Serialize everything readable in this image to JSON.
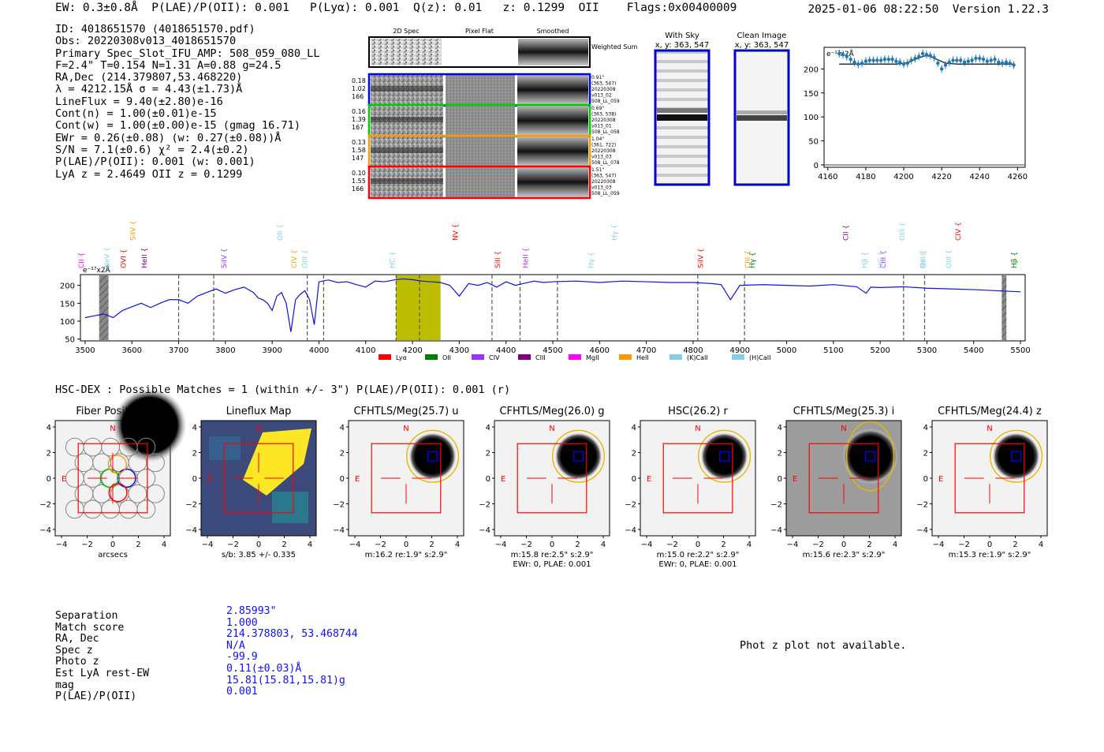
{
  "header": {
    "ew": "EW: 0.3±0.8Å",
    "plae": "P(LAE)/P(OII): 0.001",
    "plya": "P(Lyα): 0.001",
    "qz": "Q(z): 0.01",
    "z": "z: 0.1299",
    "z_line": "OII",
    "flags": "Flags:0x00400009",
    "timestamp": "2025-01-06 08:22:50",
    "version": "Version 1.22.3"
  },
  "info_lines": [
    "ID: 4018651570 (4018651570.pdf)",
    "Obs: 20220308v013_4018651570",
    "Primary Spec_Slot_IFU_AMP: 508_059_080_LL",
    "F=2.4\"  T=0.154  N=1.31  A=0.88  g=24.5",
    "RA,Dec (214.379807,53.468220)",
    "λ = 4212.15Å  σ = 4.43(±1.73)Å",
    "LineFlux = 9.40(±2.80)e-16",
    "Cont(n) = 1.00(±0.01)e-15",
    "Cont(w) = 1.00(±0.00)e-15 (gmag 16.71)",
    "EWr = 0.26(±0.08)  (w: 0.27(±0.08))Å",
    "S/N = 7.1(±0.6)  χ² = 2.4(±0.2)",
    "P(LAE)/P(OII): 0.001  (w: 0.001)",
    "LyA z = 2.4649   OII z = 0.1299"
  ],
  "cutouts": {
    "col_headers": [
      "2D Spec",
      "Pixel Flat",
      "Smoothed"
    ],
    "weighted_label": "Weighted Sum",
    "rows": [
      {
        "left": [
          "0.18",
          "1.02",
          "166"
        ],
        "right": [
          "0.91\"",
          "(363, 547)",
          "20220308",
          "v013_02",
          "508_LL_059"
        ],
        "color": "#0000ff"
      },
      {
        "left": [
          "0.16",
          "1.39",
          "167"
        ],
        "right": [
          "0.69\"",
          "(363, 538)",
          "20220308",
          "v013_01",
          "508_LL_058"
        ],
        "color": "#00cc00"
      },
      {
        "left": [
          "0.13",
          "1.58",
          "147"
        ],
        "right": [
          "1.04\"",
          "(361, 722)",
          "20220308",
          "v013_03",
          "508_LL_078"
        ],
        "color": "#ff9900"
      },
      {
        "left": [
          "0.10",
          "1.55",
          "166"
        ],
        "right": [
          "1.51\"",
          "(363, 547)",
          "20220308",
          "v013_03",
          "508_LL_059"
        ],
        "color": "#ff0000"
      }
    ]
  },
  "sky_panels": {
    "with_sky": {
      "title": "With Sky",
      "coords": "x, y: 363, 547"
    },
    "clean": {
      "title": "Clean Image",
      "coords": "x, y: 363, 547"
    }
  },
  "zoom_chart": {
    "unit_label": "e⁻¹⁷x2Å",
    "yticks": [
      0,
      50,
      100,
      150,
      200
    ],
    "xticks": [
      4160,
      4180,
      4200,
      4220,
      4240,
      4260
    ]
  },
  "chart_data": [
    {
      "type": "scatter",
      "title": "",
      "xlabel": "",
      "ylabel": "e⁻¹⁷x2Å",
      "xlim": [
        4158,
        4264
      ],
      "ylim": [
        -5,
        245
      ],
      "series": [
        {
          "values": [
            [
              4166,
              232
            ],
            [
              4168,
              230
            ],
            [
              4170,
              226
            ],
            [
              4172,
              220
            ],
            [
              4174,
              214
            ],
            [
              4176,
              210
            ],
            [
              4178,
              212
            ],
            [
              4180,
              216
            ],
            [
              4182,
              218
            ],
            [
              4184,
              218
            ],
            [
              4186,
              218
            ],
            [
              4188,
              218
            ],
            [
              4190,
              220
            ],
            [
              4192,
              220
            ],
            [
              4194,
              220
            ],
            [
              4196,
              216
            ],
            [
              4198,
              214
            ],
            [
              4200,
              210
            ],
            [
              4202,
              212
            ],
            [
              4204,
              218
            ],
            [
              4206,
              222
            ],
            [
              4208,
              226
            ],
            [
              4210,
              232
            ],
            [
              4212,
              230
            ],
            [
              4214,
              228
            ],
            [
              4216,
              224
            ],
            [
              4218,
              212
            ],
            [
              4220,
              200
            ],
            [
              4222,
              208
            ],
            [
              4224,
              214
            ],
            [
              4226,
              218
            ],
            [
              4228,
              218
            ],
            [
              4230,
              218
            ],
            [
              4232,
              214
            ],
            [
              4234,
              216
            ],
            [
              4236,
              218
            ],
            [
              4238,
              222
            ],
            [
              4240,
              222
            ],
            [
              4242,
              220
            ],
            [
              4244,
              216
            ],
            [
              4246,
              218
            ],
            [
              4248,
              220
            ],
            [
              4250,
              214
            ],
            [
              4252,
              212
            ],
            [
              4254,
              214
            ],
            [
              4256,
              212
            ],
            [
              4258,
              208
            ]
          ]
        },
        {
          "values": [
            [
              4166,
              210
            ],
            [
              4196,
              210
            ],
            [
              4202,
              213
            ],
            [
              4206,
              220
            ],
            [
              4210,
              226
            ],
            [
              4212,
              228
            ],
            [
              4214,
              226
            ],
            [
              4218,
              219
            ],
            [
              4222,
              212
            ],
            [
              4228,
              210
            ],
            [
              4258,
              210
            ]
          ]
        }
      ]
    },
    {
      "type": "line",
      "title": "",
      "xlabel": "",
      "ylabel": "e⁻¹⁷x2Å",
      "xlim": [
        3490,
        5510
      ],
      "ylim": [
        45,
        230
      ],
      "x": [
        3500,
        3520,
        3540,
        3560,
        3580,
        3600,
        3620,
        3640,
        3660,
        3680,
        3700,
        3720,
        3740,
        3760,
        3780,
        3800,
        3820,
        3840,
        3860,
        3870,
        3880,
        3890,
        3900,
        3910,
        3920,
        3930,
        3940,
        3950,
        3960,
        3970,
        3980,
        3990,
        4000,
        4020,
        4040,
        4060,
        4080,
        4100,
        4120,
        4140,
        4160,
        4180,
        4200,
        4220,
        4240,
        4260,
        4280,
        4300,
        4320,
        4340,
        4360,
        4380,
        4400,
        4420,
        4440,
        4460,
        4480,
        4500,
        4550,
        4600,
        4650,
        4700,
        4750,
        4800,
        4840,
        4860,
        4880,
        4900,
        4950,
        5000,
        5050,
        5100,
        5150,
        5170,
        5180,
        5200,
        5250,
        5300,
        5350,
        5400,
        5450,
        5500
      ],
      "series": [
        {
          "name": "spectrum",
          "values": [
            110,
            115,
            120,
            110,
            130,
            140,
            150,
            138,
            150,
            160,
            160,
            150,
            170,
            180,
            190,
            178,
            188,
            195,
            180,
            165,
            160,
            150,
            130,
            170,
            180,
            150,
            70,
            160,
            175,
            185,
            160,
            90,
            210,
            215,
            208,
            210,
            202,
            195,
            212,
            210,
            215,
            218,
            216,
            212,
            210,
            208,
            200,
            170,
            205,
            200,
            208,
            195,
            210,
            200,
            206,
            212,
            208,
            210,
            212,
            208,
            212,
            210,
            208,
            208,
            205,
            202,
            160,
            200,
            202,
            200,
            198,
            202,
            196,
            178,
            195,
            194,
            196,
            192,
            190,
            188,
            185,
            182
          ]
        }
      ],
      "xticks": [
        3500,
        3600,
        3700,
        3800,
        3900,
        4000,
        4100,
        4200,
        4300,
        4400,
        4500,
        4600,
        4700,
        4800,
        4900,
        5000,
        5100,
        5200,
        5300,
        5400,
        5500
      ],
      "yticks": [
        50,
        100,
        150,
        200
      ],
      "highlight_band": [
        4165,
        4260
      ],
      "dashed_lines": [
        3700,
        3775,
        3975,
        4010,
        4165,
        4215,
        4370,
        4430,
        4510,
        4810,
        4910,
        5250,
        5295
      ],
      "line_labels": [
        {
          "label": "CII",
          "x": 3500,
          "color": "#ff00ff"
        },
        {
          "label": "NeV",
          "x": 3545,
          "color": "#87ceeb"
        },
        {
          "label": "SiIV",
          "x": 3590,
          "color": "#ff9900"
        },
        {
          "label": "OVI",
          "x": 3590,
          "color": "#ff0000"
        },
        {
          "label": "HeII",
          "x": 3625,
          "color": "#800080"
        },
        {
          "label": "SiIV",
          "x": 3785,
          "color": "#9933ff"
        },
        {
          "label": "OII",
          "x": 3925,
          "color": "#87ceeb"
        },
        {
          "label": "CIV",
          "x": 3945,
          "color": "#ff9900"
        },
        {
          "label": "OIII",
          "x": 3958,
          "color": "#87ceeb"
        },
        {
          "label": "HC",
          "x": 4165,
          "color": "#87ceeb"
        },
        {
          "label": "NV",
          "x": 4290,
          "color": "#ff0000"
        },
        {
          "label": "SiII",
          "x": 4370,
          "color": "#ff0000"
        },
        {
          "label": "HeII",
          "x": 4450,
          "color": "#9933ff"
        },
        {
          "label": "Hγ",
          "x": 4580,
          "color": "#87ceeb"
        },
        {
          "label": "Hγ",
          "x": 4620,
          "color": "#87ceeb"
        },
        {
          "label": "SiIV",
          "x": 4825,
          "color": "#ff0000"
        },
        {
          "label": "CIII",
          "x": 4915,
          "color": "#ff9900"
        },
        {
          "label": "Hγ",
          "x": 4915,
          "color": "#008000"
        },
        {
          "label": "CII",
          "x": 5135,
          "color": "#800080"
        },
        {
          "label": "Hβ",
          "x": 5165,
          "color": "#87ceeb"
        },
        {
          "label": "CIII",
          "x": 5195,
          "color": "#9933ff"
        },
        {
          "label": "HC",
          "x": 5210,
          "color": "#87ceeb"
        },
        {
          "label": "OIII",
          "x": 5245,
          "color": "#87ceeb"
        },
        {
          "label": "NaI",
          "x": 5280,
          "color": "#87ceeb"
        },
        {
          "label": "OII",
          "x": 5300,
          "color": "#87ceeb"
        },
        {
          "label": "OIII",
          "x": 5345,
          "color": "#87ceeb"
        },
        {
          "label": "CIV",
          "x": 5355,
          "color": "#ff0000"
        },
        {
          "label": "Hβ",
          "x": 5495,
          "color": "#008000"
        }
      ],
      "legend": [
        {
          "label": "Lyα",
          "color": "#ff0000"
        },
        {
          "label": "OII",
          "color": "#008000"
        },
        {
          "label": "CIV",
          "color": "#9933ff"
        },
        {
          "label": "CIII",
          "color": "#800080"
        },
        {
          "label": "MgII",
          "color": "#ff00ff"
        },
        {
          "label": "HeII",
          "color": "#ff9900"
        },
        {
          "label": "(K)CaII",
          "color": "#87ceeb"
        },
        {
          "label": "(H)CaII",
          "color": "#87ceeb"
        }
      ]
    }
  ],
  "hsc": {
    "title": "HSC-DEX : Possible Matches = 1 (within +/- 3\")  P(LAE)/P(OII): 0.001 (r)",
    "axis_ticks": [
      "4",
      "2",
      "0",
      "−2",
      "−4"
    ],
    "panels": [
      {
        "title": "Fiber Positions",
        "caption": [
          "arcsecs"
        ],
        "style": "fiber"
      },
      {
        "title": "Lineflux Map",
        "caption": [
          "s/b: 3.85 +/- 0.335"
        ],
        "style": "lineflux"
      },
      {
        "title": "CFHTLS/Meg(25.7) u",
        "caption": [
          "m:16.2  re:1.9\"  s:2.9\""
        ],
        "style": "light"
      },
      {
        "title": "CFHTLS/Meg(26.0) g",
        "caption": [
          "m:15.8  re:2.5\"  s:2.9\"",
          "EWr: 0, PLAE: 0.001"
        ],
        "style": "light"
      },
      {
        "title": "HSC(26.2) r",
        "caption": [
          "m:15.0  re:2.2\"  s:2.9\"",
          "EWr: 0, PLAE: 0.001"
        ],
        "style": "light"
      },
      {
        "title": "CFHTLS/Meg(25.3) i",
        "caption": [
          "m:15.6  re:2.3\"  s:2.9\""
        ],
        "style": "grey"
      },
      {
        "title": "CFHTLS/Meg(24.4) z",
        "caption": [
          "m:15.3  re:1.9\"  s:2.9\""
        ],
        "style": "light"
      }
    ]
  },
  "match_table": {
    "labels": [
      "Separation",
      "Match score",
      "RA, Dec",
      "Spec z",
      "Photo z",
      "Est LyA rest-EW",
      "mag",
      "P(LAE)/P(OII)"
    ],
    "values": [
      "2.85993\"",
      "1.000",
      "214.378803, 53.468744",
      "N/A",
      "-99.9",
      "0.11(±0.03)Å",
      "15.81(15.81,15.81)g",
      "0.001"
    ]
  },
  "photz_note": "Phot z plot not available."
}
